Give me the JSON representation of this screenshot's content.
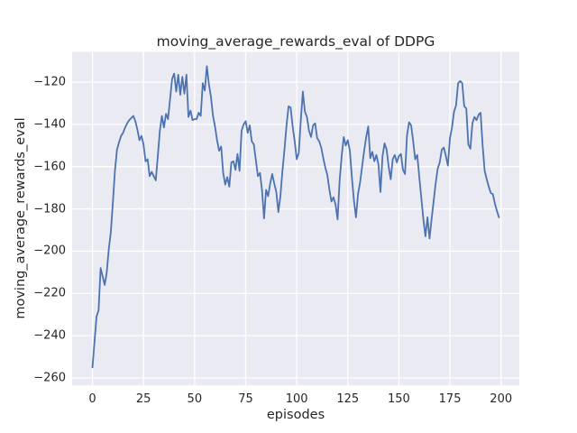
{
  "figure": {
    "title": "moving_average_rewards_eval of DDPG",
    "xlabel": "episodes",
    "ylabel": "moving_average_rewards_eval"
  },
  "chart_data": {
    "type": "line",
    "title": "moving_average_rewards_eval of DDPG",
    "xlabel": "episodes",
    "ylabel": "moving_average_rewards_eval",
    "legend": null,
    "grid": true,
    "style": "seaborn-darkgrid",
    "xlim": [
      -9.95,
      208.95
    ],
    "ylim": [
      -263.5,
      -105.75
    ],
    "xticks": [
      0,
      25,
      50,
      75,
      100,
      125,
      150,
      175,
      200
    ],
    "yticks": [
      -260,
      -240,
      -220,
      -200,
      -180,
      -160,
      -140,
      -120
    ],
    "line_color": "#4c72b0",
    "axes_bg": "#eaeaf2",
    "grid_color": "#ffffff",
    "text_color": "#262626",
    "x": [
      0,
      1,
      2,
      3,
      4,
      5,
      6,
      7,
      8,
      9,
      10,
      11,
      12,
      13,
      14,
      15,
      16,
      17,
      18,
      19,
      20,
      21,
      22,
      23,
      24,
      25,
      26,
      27,
      28,
      29,
      30,
      31,
      32,
      33,
      34,
      35,
      36,
      37,
      38,
      39,
      40,
      41,
      42,
      43,
      44,
      45,
      46,
      47,
      48,
      49,
      50,
      51,
      52,
      53,
      54,
      55,
      56,
      57,
      58,
      59,
      60,
      61,
      62,
      63,
      64,
      65,
      66,
      67,
      68,
      69,
      70,
      71,
      72,
      73,
      74,
      75,
      76,
      77,
      78,
      79,
      80,
      81,
      82,
      83,
      84,
      85,
      86,
      87,
      88,
      89,
      90,
      91,
      92,
      93,
      94,
      95,
      96,
      97,
      98,
      99,
      100,
      101,
      102,
      103,
      104,
      105,
      106,
      107,
      108,
      109,
      110,
      111,
      112,
      113,
      114,
      115,
      116,
      117,
      118,
      119,
      120,
      121,
      122,
      123,
      124,
      125,
      126,
      127,
      128,
      129,
      130,
      131,
      132,
      133,
      134,
      135,
      136,
      137,
      138,
      139,
      140,
      141,
      142,
      143,
      144,
      145,
      146,
      147,
      148,
      149,
      150,
      151,
      152,
      153,
      154,
      155,
      156,
      157,
      158,
      159,
      160,
      161,
      162,
      163,
      164,
      165,
      166,
      167,
      168,
      169,
      170,
      171,
      172,
      173,
      174,
      175,
      176,
      177,
      178,
      179,
      180,
      181,
      182,
      183,
      184,
      185,
      186,
      187,
      188,
      189,
      190,
      191,
      192,
      193,
      194,
      195,
      196,
      197,
      198,
      199
    ],
    "y": [
      -255,
      -243,
      -231,
      -228,
      -208,
      -212,
      -216,
      -210,
      -199,
      -191,
      -177,
      -162,
      -152,
      -148.5,
      -145.5,
      -144,
      -141.5,
      -139.5,
      -138,
      -137,
      -136,
      -138.5,
      -142.5,
      -147.5,
      -145.5,
      -149.5,
      -157.5,
      -156.5,
      -164.5,
      -162.5,
      -164.5,
      -166.5,
      -155,
      -143,
      -136,
      -141.5,
      -135,
      -137.5,
      -128,
      -118.5,
      -116,
      -124.5,
      -116.5,
      -126,
      -117.5,
      -125.5,
      -116.5,
      -136.5,
      -133.5,
      -138,
      -137.5,
      -137.5,
      -134.5,
      -136,
      -120.5,
      -124,
      -112.5,
      -121,
      -127,
      -136,
      -141,
      -147.5,
      -152.5,
      -150.5,
      -163,
      -168.5,
      -165,
      -169.5,
      -158,
      -157.5,
      -161.5,
      -154,
      -162,
      -143,
      -140,
      -138.5,
      -144,
      -140.5,
      -148,
      -149.5,
      -157,
      -164.5,
      -163,
      -171,
      -184.5,
      -171,
      -174,
      -168,
      -163.5,
      -168,
      -172,
      -181.5,
      -174,
      -162,
      -152,
      -140.5,
      -131.5,
      -132,
      -141,
      -148,
      -156.5,
      -153.5,
      -138,
      -124.5,
      -134,
      -136.5,
      -143,
      -146,
      -140.5,
      -139.5,
      -146.5,
      -148,
      -151,
      -156,
      -160.5,
      -164,
      -171,
      -176.5,
      -174.5,
      -178,
      -185,
      -166.5,
      -155,
      -146,
      -150,
      -147.5,
      -152.5,
      -165,
      -176,
      -184,
      -173,
      -167.5,
      -160,
      -152.5,
      -146,
      -141,
      -156,
      -153,
      -157.5,
      -154.5,
      -159,
      -172,
      -155,
      -149,
      -152,
      -160,
      -166,
      -156.5,
      -154.5,
      -158,
      -155,
      -154,
      -161.5,
      -163.5,
      -145,
      -139,
      -140.5,
      -148,
      -156.5,
      -154.5,
      -165,
      -175,
      -185,
      -193,
      -184,
      -194,
      -185,
      -176.5,
      -168,
      -161,
      -158,
      -152,
      -151,
      -155,
      -159.5,
      -146.5,
      -141.5,
      -134,
      -131,
      -120.5,
      -119.5,
      -120.5,
      -131.5,
      -132.5,
      -149.5,
      -151.5,
      -139.5,
      -136.5,
      -138,
      -135.5,
      -134.5,
      -150,
      -162,
      -166,
      -169.5,
      -172.5,
      -173,
      -177.5,
      -181,
      -184
    ]
  }
}
